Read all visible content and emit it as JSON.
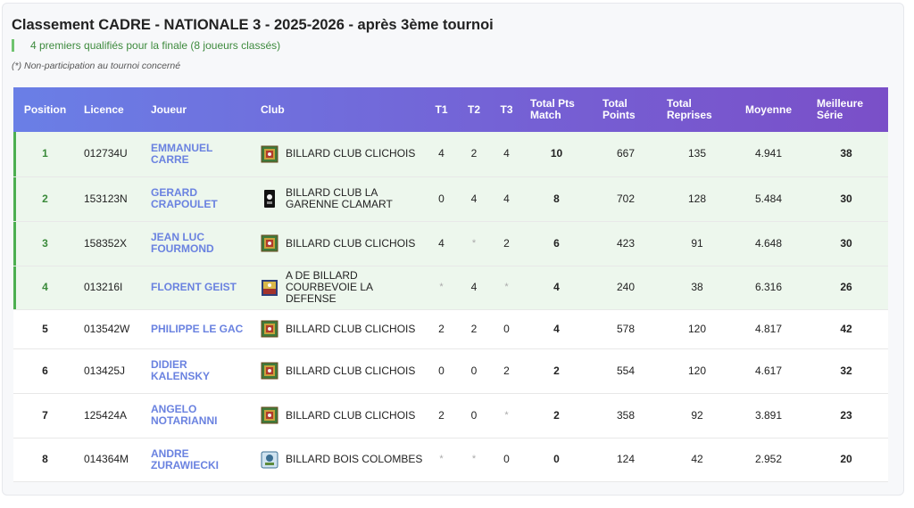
{
  "page": {
    "title": "Classement CADRE - NATIONALE 3 - 2025-2026 - après 3ème tournoi",
    "qualification_note": "4 premiers qualifiés pour la finale (8 joueurs classés)",
    "non_participation_note": "(*) Non-participation au tournoi concerné"
  },
  "table": {
    "headers": {
      "position": "Position",
      "licence": "Licence",
      "joueur": "Joueur",
      "club": "Club",
      "t1": "T1",
      "t2": "T2",
      "t3": "T3",
      "total_pts_match_1": "Total Pts",
      "total_pts_match_2": "Match",
      "total_points_1": "Total",
      "total_points_2": "Points",
      "total_reprises_1": "Total",
      "total_reprises_2": "Reprises",
      "moyenne": "Moyenne",
      "meilleure_serie_1": "Meilleure",
      "meilleure_serie_2": "Série"
    },
    "rows": [
      {
        "position": "1",
        "licence": "012734U",
        "joueur_1": "EMMANUEL",
        "joueur_2": "CARRE",
        "club_1": "BILLARD CLUB CLICHOIS",
        "club_2": "",
        "logo": "clichois-logo",
        "t1": "4",
        "t2": "2",
        "t3": "4",
        "pts_match": "10",
        "points": "667",
        "reprises": "135",
        "moyenne": "4.941",
        "serie": "38",
        "qualified": true
      },
      {
        "position": "2",
        "licence": "153123N",
        "joueur_1": "GERARD",
        "joueur_2": "CRAPOULET",
        "club_1": "BILLARD CLUB LA",
        "club_2": "GARENNE CLAMART",
        "logo": "garenne-logo",
        "t1": "0",
        "t2": "4",
        "t3": "4",
        "pts_match": "8",
        "points": "702",
        "reprises": "128",
        "moyenne": "5.484",
        "serie": "30",
        "qualified": true
      },
      {
        "position": "3",
        "licence": "158352X",
        "joueur_1": "JEAN LUC",
        "joueur_2": "FOURMOND",
        "club_1": "BILLARD CLUB CLICHOIS",
        "club_2": "",
        "logo": "clichois-logo",
        "t1": "4",
        "t2": "*",
        "t3": "2",
        "pts_match": "6",
        "points": "423",
        "reprises": "91",
        "moyenne": "4.648",
        "serie": "30",
        "qualified": true
      },
      {
        "position": "4",
        "licence": "013216I",
        "joueur_1": "FLORENT GEIST",
        "joueur_2": "",
        "club_1": "A DE BILLARD",
        "club_2": "COURBEVOIE LA DEFENSE",
        "logo": "courbevoie-logo",
        "t1": "*",
        "t2": "4",
        "t3": "*",
        "pts_match": "4",
        "points": "240",
        "reprises": "38",
        "moyenne": "6.316",
        "serie": "26",
        "qualified": true
      },
      {
        "position": "5",
        "licence": "013542W",
        "joueur_1": "PHILIPPE LE GAC",
        "joueur_2": "",
        "club_1": "BILLARD CLUB CLICHOIS",
        "club_2": "",
        "logo": "clichois-logo",
        "t1": "2",
        "t2": "2",
        "t3": "0",
        "pts_match": "4",
        "points": "578",
        "reprises": "120",
        "moyenne": "4.817",
        "serie": "42",
        "qualified": false
      },
      {
        "position": "6",
        "licence": "013425J",
        "joueur_1": "DIDIER",
        "joueur_2": "KALENSKY",
        "club_1": "BILLARD CLUB CLICHOIS",
        "club_2": "",
        "logo": "clichois-logo",
        "t1": "0",
        "t2": "0",
        "t3": "2",
        "pts_match": "2",
        "points": "554",
        "reprises": "120",
        "moyenne": "4.617",
        "serie": "32",
        "qualified": false
      },
      {
        "position": "7",
        "licence": "125424A",
        "joueur_1": "ANGELO",
        "joueur_2": "NOTARIANNI",
        "club_1": "BILLARD CLUB CLICHOIS",
        "club_2": "",
        "logo": "clichois-logo",
        "t1": "2",
        "t2": "0",
        "t3": "*",
        "pts_match": "2",
        "points": "358",
        "reprises": "92",
        "moyenne": "3.891",
        "serie": "23",
        "qualified": false
      },
      {
        "position": "8",
        "licence": "014364M",
        "joueur_1": "ANDRE",
        "joueur_2": "ZURAWIECKI",
        "club_1": "BILLARD BOIS COLOMBES",
        "club_2": "",
        "logo": "bois-colombes-logo",
        "t1": "*",
        "t2": "*",
        "t3": "0",
        "pts_match": "0",
        "points": "124",
        "reprises": "42",
        "moyenne": "2.952",
        "serie": "20",
        "qualified": false
      }
    ]
  },
  "colors": {
    "header_gradient_start": "#6a7fe6",
    "header_gradient_end": "#7a4fc8",
    "qualified_background": "#edf7ed",
    "qualified_accent": "#4caf50",
    "player_name": "#6a82e0"
  }
}
